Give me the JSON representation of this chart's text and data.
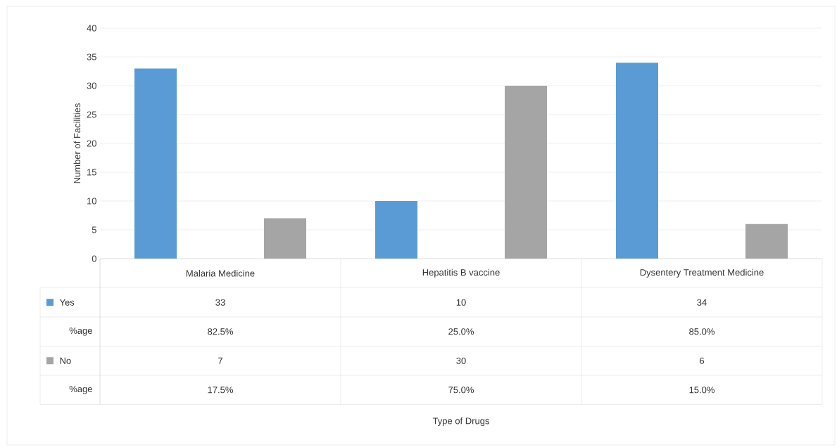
{
  "chart_data": {
    "type": "bar",
    "ylabel": "Number of Facilities",
    "categories": [
      "Malaria Medicine",
      "Hepatitis B vaccine",
      "Dysentery Treatment Medicine"
    ],
    "series": [
      {
        "name": "Yes",
        "color": "#5b9bd5",
        "values": [
          33,
          10,
          34
        ]
      },
      {
        "name": "No",
        "color": "#a5a5a5",
        "values": [
          7,
          30,
          6
        ]
      }
    ],
    "ylim": [
      0,
      40
    ],
    "yticks": [
      0,
      5,
      10,
      15,
      20,
      25,
      30,
      35,
      40
    ],
    "grid": "y",
    "legend": "bottom",
    "data_labels": true,
    "annotations": [
      "%age",
      "82.5%",
      "25.0%",
      "85.0%",
      "%age",
      "17.5%",
      "75.0%",
      "15.0%",
      "Type of Drugs"
    ]
  }
}
